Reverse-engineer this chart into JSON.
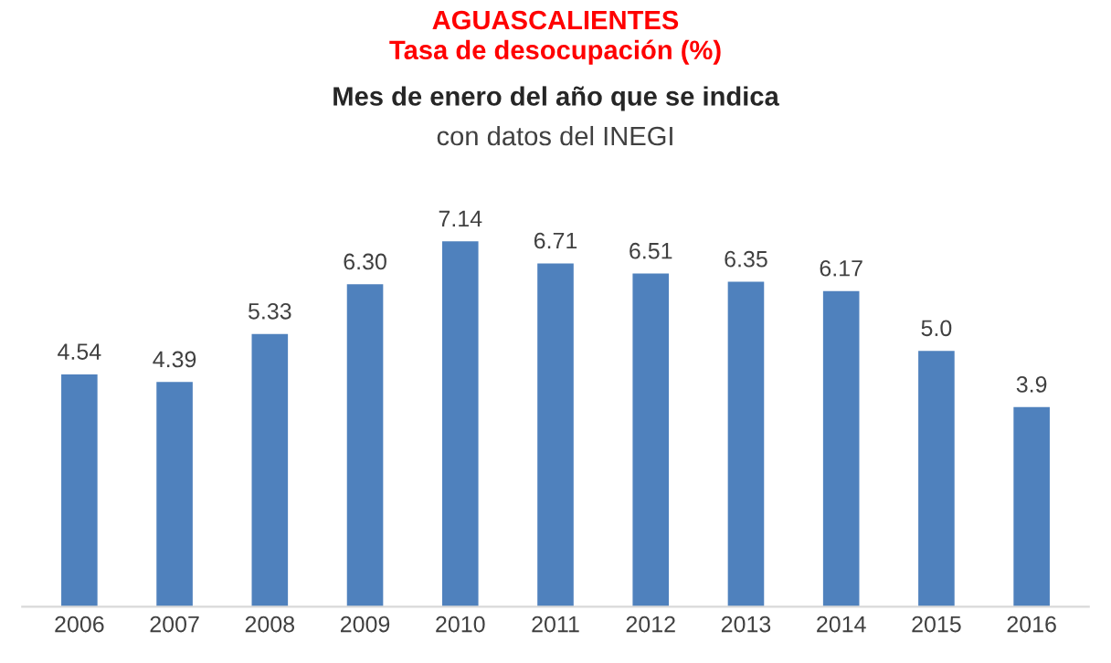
{
  "chart_data": {
    "type": "bar",
    "title": "AGUASCALIENTES\nTasa de desocupación (%)",
    "subtitle": "Mes de enero del año que se indica",
    "annotations": [
      "con datos del INEGI"
    ],
    "categories": [
      "2006",
      "2007",
      "2008",
      "2009",
      "2010",
      "2011",
      "2012",
      "2013",
      "2014",
      "2015",
      "2016"
    ],
    "values": [
      4.54,
      4.39,
      5.33,
      6.3,
      7.14,
      6.71,
      6.51,
      6.35,
      6.17,
      5.0,
      3.9
    ],
    "value_labels": [
      "4.54",
      "4.39",
      "5.33",
      "6.30",
      "7.14",
      "6.71",
      "6.51",
      "6.35",
      "6.17",
      "5.0",
      "3.9"
    ],
    "color": "#4f81bd",
    "grid": false,
    "legend": false
  }
}
